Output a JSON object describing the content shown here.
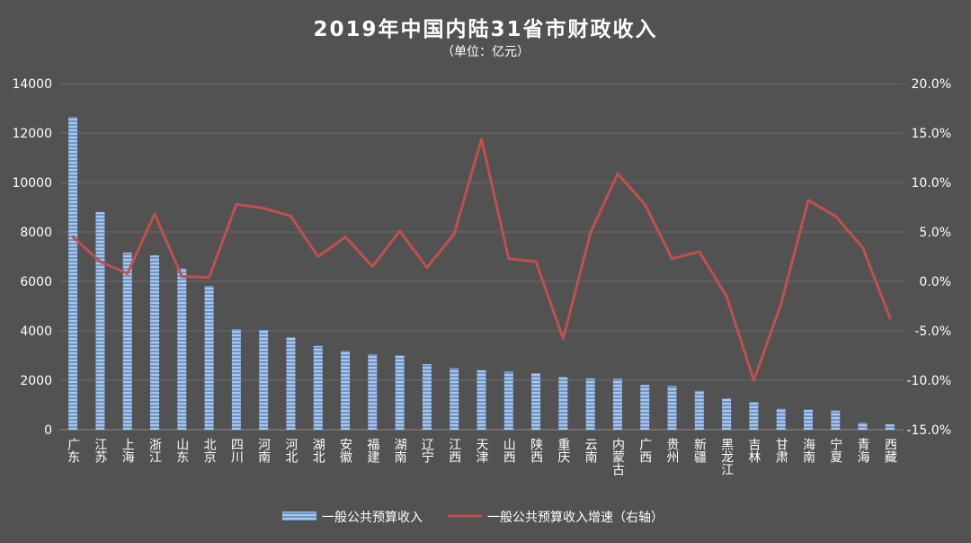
{
  "chart_data": {
    "type": "bar",
    "title": "2019年中国内陆31省市财政收入",
    "subtitle": "（单位：亿元）",
    "xlabel": "",
    "ylabel": "",
    "ylim": [
      0,
      14000
    ],
    "y_ticks": [
      "0",
      "2000",
      "4000",
      "6000",
      "8000",
      "10000",
      "12000",
      "14000"
    ],
    "y2lim": [
      -15,
      20
    ],
    "y2_ticks": [
      "-15.0%",
      "-10.0%",
      "-5.0%",
      "0.0%",
      "5.0%",
      "10.0%",
      "15.0%",
      "20.0%"
    ],
    "grid": true,
    "legend_position": "bottom",
    "categories": [
      "广东",
      "江苏",
      "上海",
      "浙江",
      "山东",
      "北京",
      "四川",
      "河南",
      "河北",
      "湖北",
      "安徽",
      "福建",
      "湖南",
      "辽宁",
      "江西",
      "天津",
      "山西",
      "陕西",
      "重庆",
      "云南",
      "内蒙古",
      "广西",
      "贵州",
      "新疆",
      "黑龙江",
      "吉林",
      "甘肃",
      "海南",
      "宁夏",
      "青海",
      "西藏"
    ],
    "series": [
      {
        "name": "一般公共预算收入",
        "type": "bar",
        "axis": "left",
        "color": "#8DB4E2",
        "values": [
          12651,
          8802,
          7165,
          7048,
          6526,
          5817,
          4070,
          4041,
          3739,
          3388,
          3182,
          3052,
          3007,
          2652,
          2487,
          2410,
          2348,
          2288,
          2135,
          2074,
          2060,
          1811,
          1767,
          1577,
          1263,
          1117,
          851,
          814,
          771,
          283,
          222
        ]
      },
      {
        "name": "一般公共预算收入增速（右轴）",
        "type": "line",
        "axis": "right",
        "unit": "%",
        "color": "#C0504D",
        "values": [
          4.5,
          2.0,
          0.8,
          6.8,
          0.5,
          0.4,
          7.8,
          7.4,
          6.6,
          2.5,
          4.5,
          1.5,
          5.1,
          1.4,
          4.8,
          14.4,
          2.3,
          2.0,
          -5.8,
          4.9,
          10.9,
          7.8,
          2.3,
          3.0,
          -1.5,
          -10.0,
          -2.3,
          8.2,
          6.6,
          3.4,
          -3.7
        ]
      }
    ]
  }
}
